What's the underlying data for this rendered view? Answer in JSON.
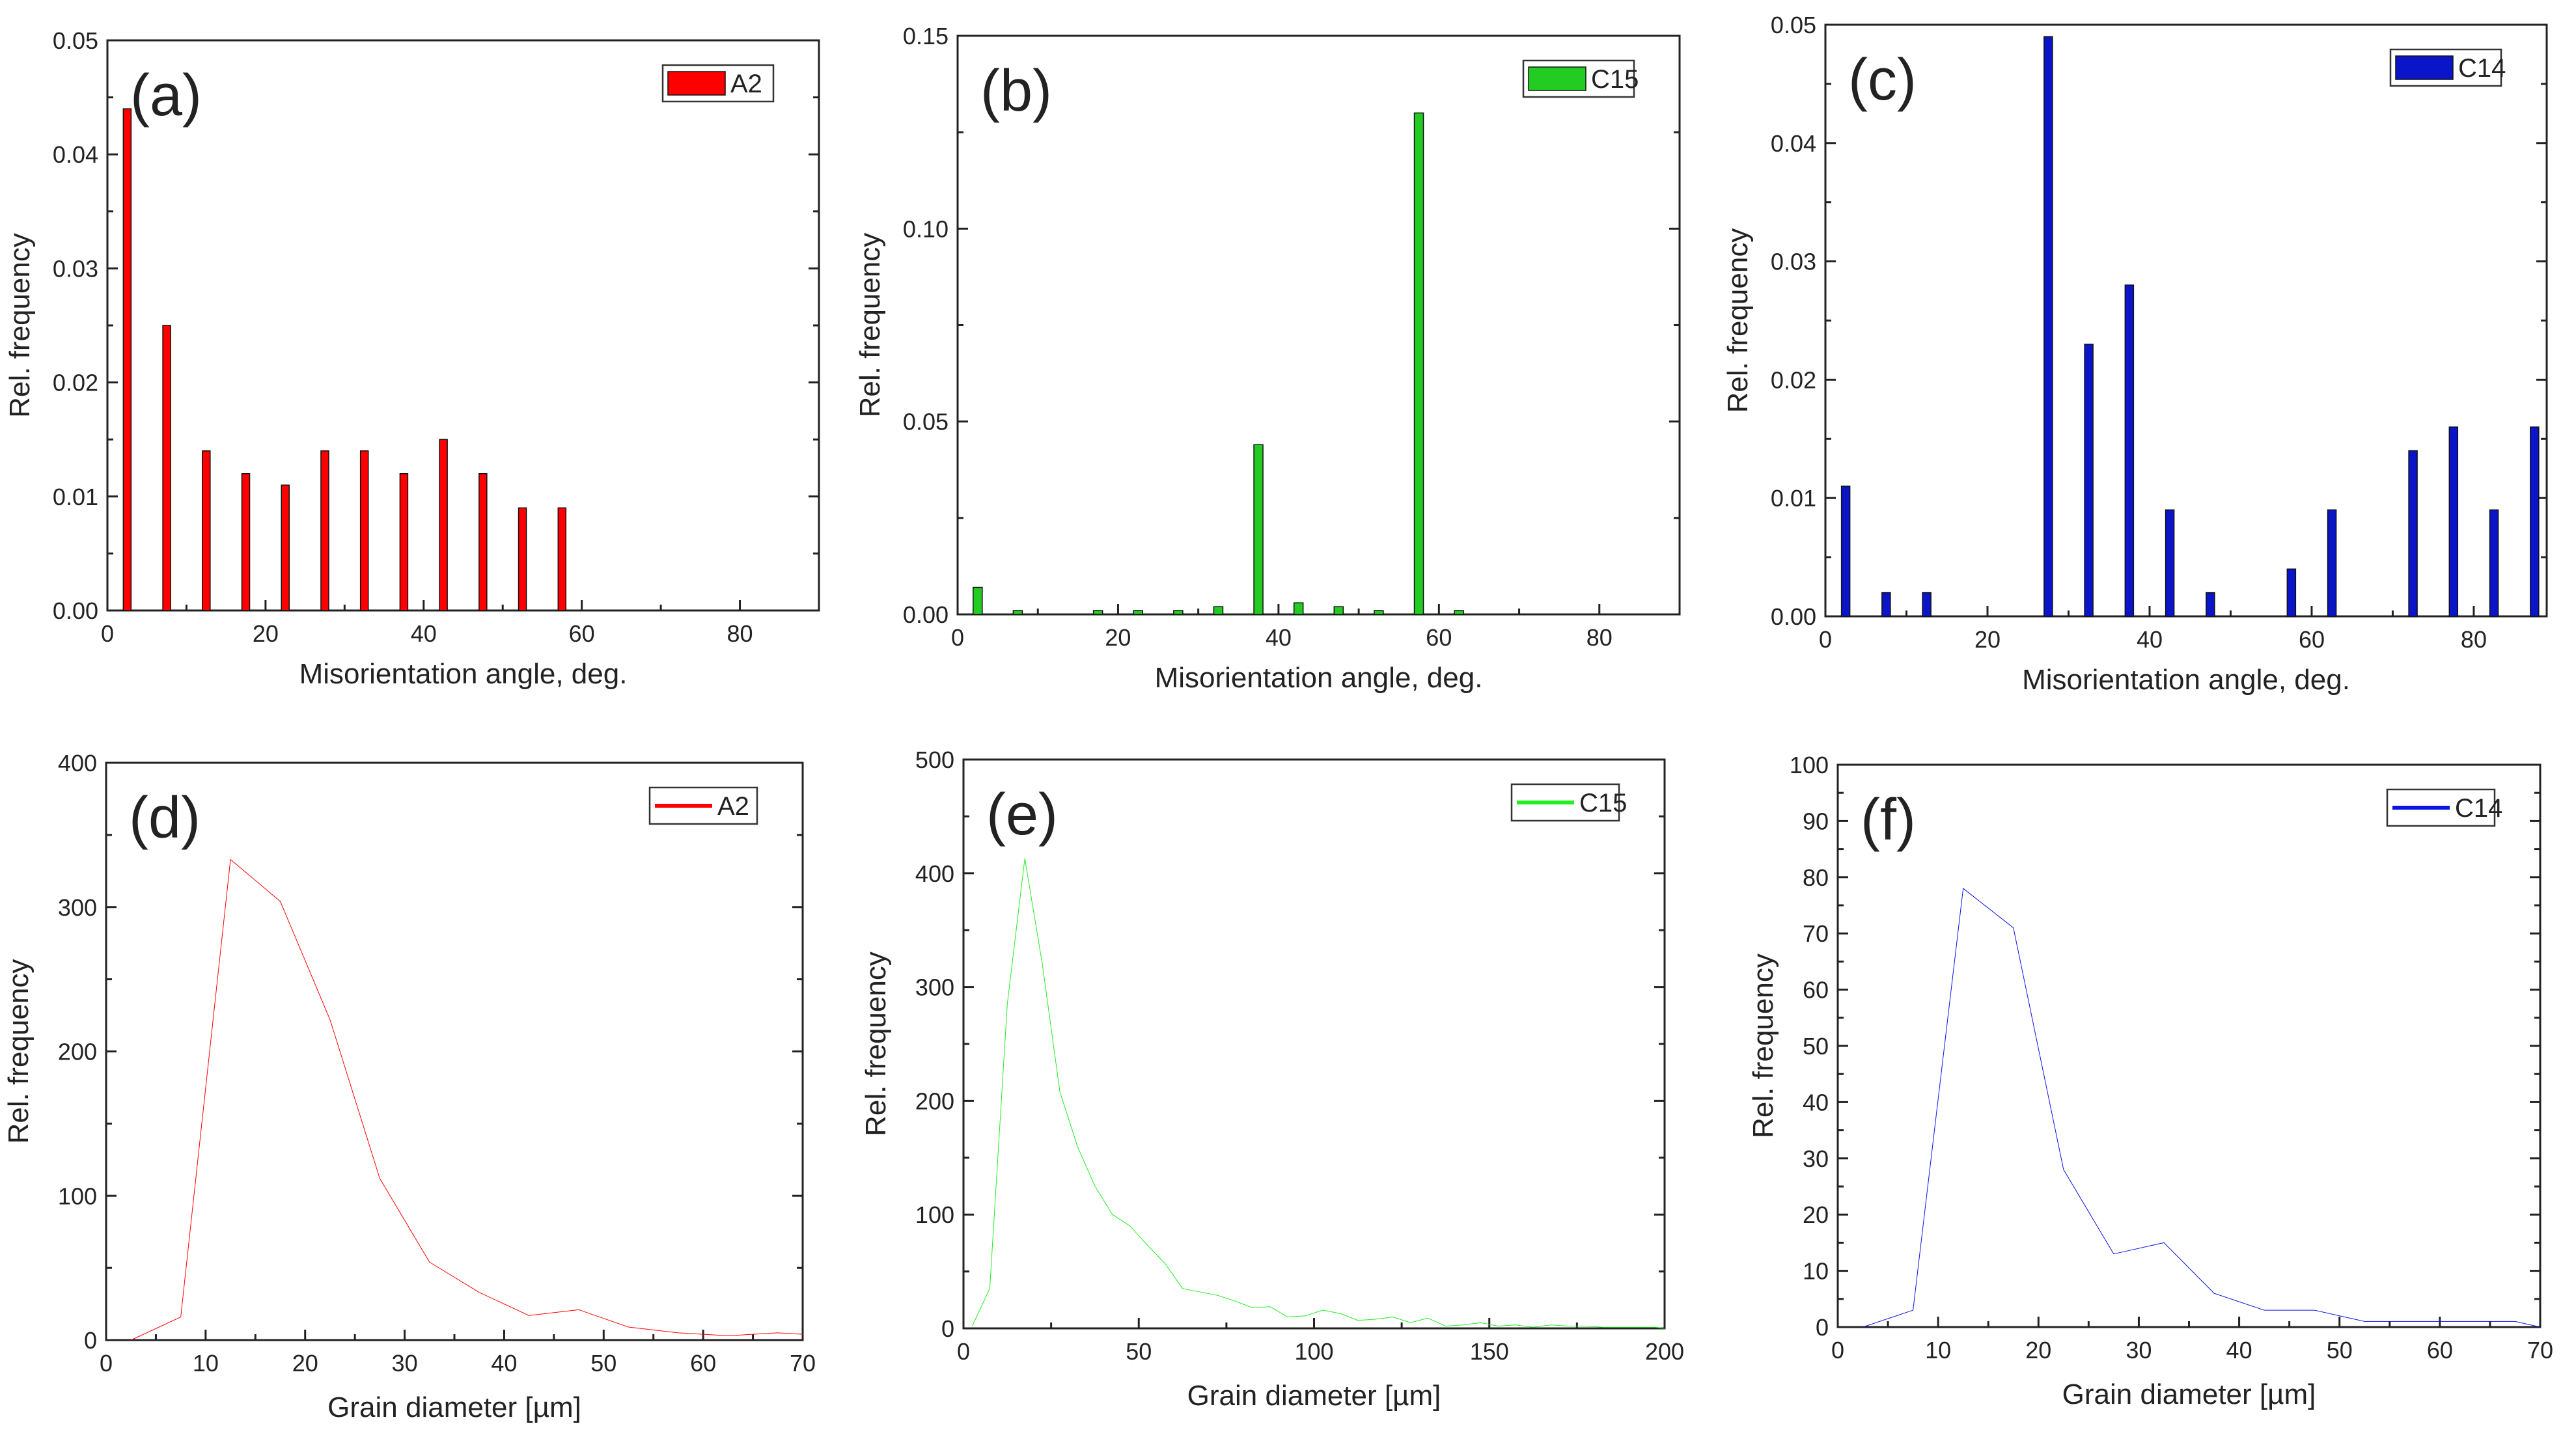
{
  "chart_data": [
    {
      "panel": "(a)",
      "type": "bar",
      "legend": "A2",
      "color": "#ff0000",
      "x": [
        2.5,
        7.5,
        12.5,
        17.5,
        22.5,
        27.5,
        32.5,
        37.5,
        42.5,
        47.5,
        52.5,
        57.5
      ],
      "values": [
        0.044,
        0.025,
        0.014,
        0.012,
        0.011,
        0.014,
        0.014,
        0.012,
        0.015,
        0.012,
        0.009,
        0.009
      ],
      "xlabel": "Misorientation angle, deg.",
      "ylabel": "Rel. frequency",
      "xlim": [
        0,
        90
      ],
      "ylim": [
        0,
        0.05
      ],
      "xticks": [
        0,
        20,
        40,
        60,
        80
      ],
      "xtick_labels": [
        "0",
        "20",
        "40",
        "60",
        "80"
      ],
      "yticks": [
        0,
        0.01,
        0.02,
        0.03,
        0.04,
        0.05
      ],
      "ytick_labels": [
        "0.00",
        "0.01",
        "0.02",
        "0.03",
        "0.04",
        "0.05"
      ],
      "legend_position": "top-right"
    },
    {
      "panel": "(b)",
      "type": "bar",
      "legend": "C15",
      "color": "#22cc22",
      "x": [
        2.5,
        7.5,
        17.5,
        22.5,
        27.5,
        32.5,
        37.5,
        42.5,
        47.5,
        52.5,
        57.5,
        62.5
      ],
      "values": [
        0.007,
        0.001,
        0.001,
        0.001,
        0.001,
        0.002,
        0.044,
        0.003,
        0.002,
        0.001,
        0.13,
        0.001
      ],
      "xlabel": "Misorientation angle, deg.",
      "ylabel": "Rel. frequency",
      "xlim": [
        0,
        90
      ],
      "ylim": [
        0,
        0.15
      ],
      "xticks": [
        0,
        20,
        40,
        60,
        80
      ],
      "xtick_labels": [
        "0",
        "20",
        "40",
        "60",
        "80"
      ],
      "yticks": [
        0,
        0.05,
        0.1,
        0.15
      ],
      "ytick_labels": [
        "0.00",
        "0.05",
        "0.10",
        "0.15"
      ],
      "legend_position": "top-right"
    },
    {
      "panel": "(c)",
      "type": "bar",
      "legend": "C14",
      "color": "#0a14c8",
      "x": [
        2.5,
        7.5,
        12.5,
        27.5,
        32.5,
        37.5,
        42.5,
        47.5,
        57.5,
        62.5,
        72.5,
        77.5,
        82.5,
        87.5
      ],
      "values": [
        0.011,
        0.002,
        0.002,
        0.049,
        0.023,
        0.028,
        0.009,
        0.002,
        0.004,
        0.009,
        0.014,
        0.016,
        0.009,
        0.016
      ],
      "xlabel": "Misorientation angle, deg.",
      "ylabel": "Rel. frequency",
      "xlim": [
        0,
        89
      ],
      "ylim": [
        0,
        0.05
      ],
      "xticks": [
        0,
        20,
        40,
        60,
        80
      ],
      "xtick_labels": [
        "0",
        "20",
        "40",
        "60",
        "80"
      ],
      "yticks": [
        0,
        0.01,
        0.02,
        0.03,
        0.04,
        0.05
      ],
      "ytick_labels": [
        "0.00",
        "0.01",
        "0.02",
        "0.03",
        "0.04",
        "0.05"
      ],
      "legend_position": "top-right"
    },
    {
      "panel": "(d)",
      "type": "line",
      "legend": "A2",
      "color": "#ff0000",
      "x": [
        2.5,
        7.5,
        12.5,
        17.5,
        22.5,
        27.5,
        32.5,
        37.5,
        42.5,
        47.5,
        52.5,
        57.5,
        62.5,
        67.5,
        70
      ],
      "values": [
        0,
        16,
        333,
        304,
        222,
        112,
        54,
        33,
        17,
        21,
        9,
        5,
        3,
        5,
        4
      ],
      "xlabel": "Grain diameter [µm]",
      "ylabel": "Rel. frequency",
      "xlim": [
        0,
        70
      ],
      "ylim": [
        0,
        400
      ],
      "xticks": [
        0,
        10,
        20,
        30,
        40,
        50,
        60,
        70
      ],
      "xtick_labels": [
        "0",
        "10",
        "20",
        "30",
        "40",
        "50",
        "60",
        "70"
      ],
      "yticks": [
        0,
        100,
        200,
        300,
        400
      ],
      "ytick_labels": [
        "0",
        "100",
        "200",
        "300",
        "400"
      ],
      "legend_position": "top-right"
    },
    {
      "panel": "(e)",
      "type": "line",
      "legend": "C15",
      "color": "#22ee22",
      "x": [
        2.5,
        7.5,
        12.5,
        17.5,
        22.5,
        27.5,
        32.5,
        37.5,
        42.5,
        47.5,
        52.5,
        57.5,
        62.5,
        67.5,
        72.5,
        77.5,
        82.5,
        87.5,
        92.5,
        97.5,
        102.5,
        107.5,
        112.5,
        117.5,
        122.5,
        127.5,
        132.5,
        137.5,
        142.5,
        147.5,
        152.5,
        157.5,
        162.5,
        167.5,
        172.5,
        177.5,
        182.5,
        187.5,
        192.5,
        197.5,
        200
      ],
      "values": [
        2,
        35,
        285,
        413,
        320,
        208,
        160,
        125,
        100,
        90,
        73,
        57,
        35,
        32,
        29,
        24,
        18,
        19,
        10,
        11,
        16,
        13,
        7,
        8,
        10,
        5,
        9,
        2,
        3,
        5,
        2,
        3,
        1,
        3,
        2,
        2,
        1,
        1,
        1,
        1,
        0
      ],
      "xlabel": "Grain diameter [µm]",
      "ylabel": "Rel. frequency",
      "xlim": [
        0,
        200
      ],
      "ylim": [
        0,
        500
      ],
      "xticks": [
        0,
        50,
        100,
        150,
        200
      ],
      "xtick_labels": [
        "0",
        "50",
        "100",
        "150",
        "200"
      ],
      "yticks": [
        0,
        100,
        200,
        300,
        400,
        500
      ],
      "ytick_labels": [
        "0",
        "100",
        "200",
        "300",
        "400",
        "500"
      ],
      "legend_position": "top-right"
    },
    {
      "panel": "(f)",
      "type": "line",
      "legend": "C14",
      "color": "#0a14e6",
      "x": [
        2.5,
        7.5,
        12.5,
        17.5,
        22.5,
        27.5,
        32.5,
        37.5,
        42.5,
        47.5,
        52.5,
        57.5,
        62.5,
        67.5,
        70
      ],
      "values": [
        0,
        3,
        78,
        71,
        28,
        13,
        15,
        6,
        3,
        3,
        1,
        1,
        1,
        1,
        0
      ],
      "xlabel": "Grain diameter [µm]",
      "ylabel": "Rel. frequency",
      "xlim": [
        0,
        70
      ],
      "ylim": [
        0,
        100
      ],
      "xticks": [
        0,
        10,
        20,
        30,
        40,
        50,
        60,
        70
      ],
      "xtick_labels": [
        "0",
        "10",
        "20",
        "30",
        "40",
        "50",
        "60",
        "70"
      ],
      "yticks": [
        0,
        10,
        20,
        30,
        40,
        50,
        60,
        70,
        80,
        90,
        100
      ],
      "ytick_labels": [
        "0",
        "10",
        "20",
        "30",
        "40",
        "50",
        "60",
        "70",
        "80",
        "90",
        "100"
      ],
      "legend_position": "top-right"
    }
  ]
}
